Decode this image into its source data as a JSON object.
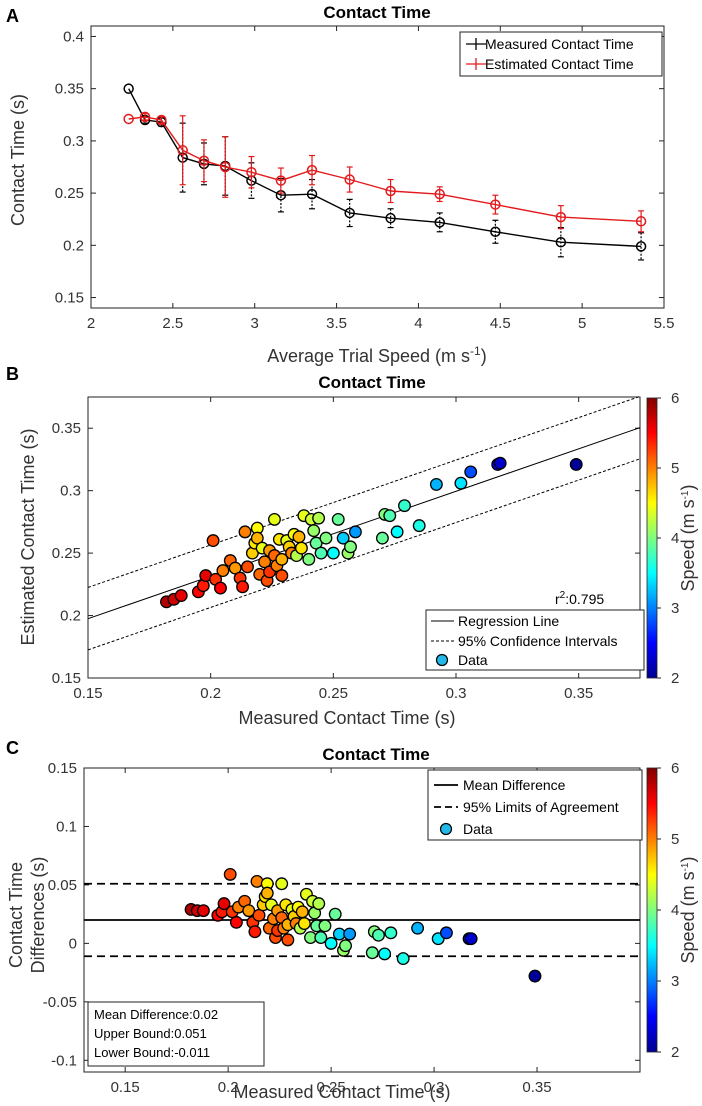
{
  "chart_data": [
    {
      "panel_label": "A",
      "type": "line",
      "title": "Contact Time",
      "xlabel": "Average Trial Speed (m s",
      "xlabel_sup": "-1",
      "xlabel_end": ")",
      "ylabel": "Contact Time (s)",
      "xlim": [
        2,
        5.5
      ],
      "ylim": [
        0.14,
        0.41
      ],
      "xticks": [
        "2",
        "2.5",
        "3",
        "3.5",
        "4",
        "4.5",
        "5",
        "5.5"
      ],
      "yticks": [
        "0.15",
        "0.2",
        "0.25",
        "0.3",
        "0.35",
        "0.4"
      ],
      "x": [
        2.23,
        2.33,
        2.43,
        2.56,
        2.69,
        2.82,
        2.98,
        3.16,
        3.35,
        3.58,
        3.83,
        4.13,
        4.47,
        4.87,
        5.36
      ],
      "legend_position": "top-right",
      "series": [
        {
          "name": "Measured Contact Time",
          "color": "#000000",
          "values": [
            0.35,
            0.32,
            0.318,
            0.284,
            0.278,
            0.276,
            0.262,
            0.248,
            0.249,
            0.231,
            0.226,
            0.222,
            0.213,
            0.203,
            0.199
          ],
          "errors": [
            0,
            0.003,
            0.004,
            0.033,
            0.02,
            0.028,
            0.017,
            0.016,
            0.014,
            0.013,
            0.009,
            0.009,
            0.011,
            0.014,
            0.013
          ]
        },
        {
          "name": "Estimated Contact Time",
          "color": "#e31a1c",
          "values": [
            0.321,
            0.323,
            0.32,
            0.291,
            0.281,
            0.275,
            0.27,
            0.262,
            0.272,
            0.263,
            0.252,
            0.249,
            0.239,
            0.227,
            0.223
          ],
          "errors": [
            0,
            0.003,
            0.003,
            0.033,
            0.02,
            0.029,
            0.015,
            0.012,
            0.014,
            0.012,
            0.011,
            0.007,
            0.009,
            0.011,
            0.01
          ]
        }
      ]
    },
    {
      "panel_label": "B",
      "type": "scatter",
      "title": "Contact Time",
      "xlabel": "Measured Contact Time (s)",
      "ylabel": "Estimated Contact Time (s)",
      "xlim": [
        0.15,
        0.375
      ],
      "ylim": [
        0.15,
        0.375
      ],
      "xticks": [
        "0.15",
        "0.2",
        "0.25",
        "0.3",
        "0.35"
      ],
      "yticks": [
        "0.15",
        "0.2",
        "0.25",
        "0.3",
        "0.35"
      ],
      "regression": {
        "slope": 0.68,
        "intercept": 0.0955,
        "ci_offset": 0.025
      },
      "annotation": "r",
      "annotation_sup": "2",
      "annotation_value": ":0.795",
      "colorbar": {
        "label": "Speed (m s",
        "label_sup": "-1",
        "label_end": ")",
        "min": 2,
        "max": 6,
        "ticks": [
          "2",
          "3",
          "4",
          "5",
          "6"
        ]
      },
      "legend_position": "bottom-right",
      "legend": [
        "Regression Line",
        "95% Confidence Intervals",
        "Data"
      ]
    },
    {
      "panel_label": "C",
      "type": "scatter",
      "title": "Contact Time",
      "xlabel": "Measured Contact Time (s)",
      "ylabel_line1": "Contact Time",
      "ylabel_line2": "Differences  (s)",
      "xlim": [
        0.13,
        0.4
      ],
      "ylim": [
        -0.11,
        0.15
      ],
      "xticks": [
        "0.15",
        "0.2",
        "0.25",
        "0.3",
        "0.35"
      ],
      "yticks": [
        "-0.1",
        "-0.05",
        "0",
        "0.05",
        "0.1",
        "0.15"
      ],
      "mean_difference": 0.02,
      "upper_bound": 0.051,
      "lower_bound": -0.011,
      "stats_text": [
        "Mean Difference:0.02",
        "Upper Bound:0.051",
        "Lower Bound:-0.011"
      ],
      "colorbar": {
        "label": "Speed (m s",
        "label_sup": "-1",
        "label_end": ")",
        "min": 2,
        "max": 6,
        "ticks": [
          "2",
          "3",
          "4",
          "5",
          "6"
        ]
      },
      "legend_position": "top-right",
      "legend": [
        "Mean Difference",
        "95% Limits of Agreement",
        "Data"
      ]
    }
  ],
  "scatter_points": [
    {
      "m": 0.182,
      "e": 0.211,
      "s": 5.8
    },
    {
      "m": 0.185,
      "e": 0.213,
      "s": 5.7
    },
    {
      "m": 0.188,
      "e": 0.216,
      "s": 5.6
    },
    {
      "m": 0.195,
      "e": 0.219,
      "s": 5.5
    },
    {
      "m": 0.197,
      "e": 0.224,
      "s": 5.4
    },
    {
      "m": 0.198,
      "e": 0.232,
      "s": 5.6
    },
    {
      "m": 0.202,
      "e": 0.229,
      "s": 5.3
    },
    {
      "m": 0.204,
      "e": 0.222,
      "s": 5.5
    },
    {
      "m": 0.201,
      "e": 0.26,
      "s": 5.2
    },
    {
      "m": 0.205,
      "e": 0.236,
      "s": 5.0
    },
    {
      "m": 0.208,
      "e": 0.244,
      "s": 5.1
    },
    {
      "m": 0.21,
      "e": 0.238,
      "s": 4.9
    },
    {
      "m": 0.212,
      "e": 0.23,
      "s": 5.3
    },
    {
      "m": 0.213,
      "e": 0.223,
      "s": 5.4
    },
    {
      "m": 0.214,
      "e": 0.267,
      "s": 5.0
    },
    {
      "m": 0.215,
      "e": 0.239,
      "s": 5.2
    },
    {
      "m": 0.217,
      "e": 0.25,
      "s": 4.7
    },
    {
      "m": 0.218,
      "e": 0.258,
      "s": 4.6
    },
    {
      "m": 0.219,
      "e": 0.27,
      "s": 4.5
    },
    {
      "m": 0.219,
      "e": 0.262,
      "s": 4.8
    },
    {
      "m": 0.22,
      "e": 0.233,
      "s": 5.1
    },
    {
      "m": 0.221,
      "e": 0.254,
      "s": 4.4
    },
    {
      "m": 0.222,
      "e": 0.243,
      "s": 5.0
    },
    {
      "m": 0.223,
      "e": 0.228,
      "s": 5.2
    },
    {
      "m": 0.224,
      "e": 0.252,
      "s": 4.9
    },
    {
      "m": 0.224,
      "e": 0.235,
      "s": 5.3
    },
    {
      "m": 0.226,
      "e": 0.277,
      "s": 4.4
    },
    {
      "m": 0.226,
      "e": 0.248,
      "s": 5.1
    },
    {
      "m": 0.227,
      "e": 0.24,
      "s": 5.0
    },
    {
      "m": 0.228,
      "e": 0.261,
      "s": 4.6
    },
    {
      "m": 0.229,
      "e": 0.232,
      "s": 5.2
    },
    {
      "m": 0.229,
      "e": 0.245,
      "s": 4.8
    },
    {
      "m": 0.231,
      "e": 0.26,
      "s": 4.4
    },
    {
      "m": 0.232,
      "e": 0.255,
      "s": 4.7
    },
    {
      "m": 0.233,
      "e": 0.25,
      "s": 5.0
    },
    {
      "m": 0.234,
      "e": 0.265,
      "s": 4.5
    },
    {
      "m": 0.235,
      "e": 0.248,
      "s": 4.2
    },
    {
      "m": 0.236,
      "e": 0.263,
      "s": 4.8
    },
    {
      "m": 0.237,
      "e": 0.254,
      "s": 4.6
    },
    {
      "m": 0.238,
      "e": 0.28,
      "s": 4.4
    },
    {
      "m": 0.24,
      "e": 0.245,
      "s": 4.0
    },
    {
      "m": 0.241,
      "e": 0.277,
      "s": 4.3
    },
    {
      "m": 0.242,
      "e": 0.268,
      "s": 4.1
    },
    {
      "m": 0.243,
      "e": 0.258,
      "s": 3.9
    },
    {
      "m": 0.244,
      "e": 0.278,
      "s": 4.2
    },
    {
      "m": 0.245,
      "e": 0.25,
      "s": 3.8
    },
    {
      "m": 0.247,
      "e": 0.262,
      "s": 4.0
    },
    {
      "m": 0.25,
      "e": 0.25,
      "s": 3.5
    },
    {
      "m": 0.252,
      "e": 0.277,
      "s": 3.9
    },
    {
      "m": 0.254,
      "e": 0.262,
      "s": 3.3
    },
    {
      "m": 0.256,
      "e": 0.25,
      "s": 4.1
    },
    {
      "m": 0.257,
      "e": 0.255,
      "s": 4.0
    },
    {
      "m": 0.259,
      "e": 0.267,
      "s": 3.1
    },
    {
      "m": 0.27,
      "e": 0.262,
      "s": 3.9
    },
    {
      "m": 0.271,
      "e": 0.281,
      "s": 4.0
    },
    {
      "m": 0.273,
      "e": 0.28,
      "s": 3.8
    },
    {
      "m": 0.276,
      "e": 0.267,
      "s": 3.5
    },
    {
      "m": 0.279,
      "e": 0.288,
      "s": 3.7
    },
    {
      "m": 0.285,
      "e": 0.272,
      "s": 3.6
    },
    {
      "m": 0.292,
      "e": 0.305,
      "s": 3.2
    },
    {
      "m": 0.302,
      "e": 0.306,
      "s": 3.4
    },
    {
      "m": 0.306,
      "e": 0.315,
      "s": 2.8
    },
    {
      "m": 0.317,
      "e": 0.321,
      "s": 2.5
    },
    {
      "m": 0.318,
      "e": 0.322,
      "s": 2.3
    },
    {
      "m": 0.349,
      "e": 0.321,
      "s": 2.1
    }
  ]
}
